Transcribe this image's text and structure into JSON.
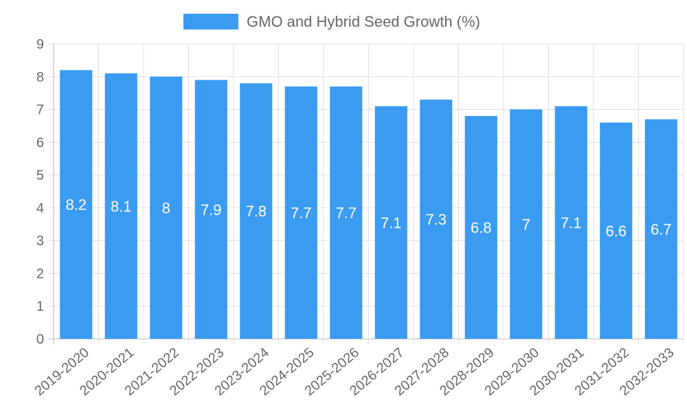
{
  "colors": {
    "bar": "#3b9bf0",
    "grid": "#e0e0e0",
    "axis": "#b5b5b5",
    "text": "#666666",
    "data_label": "#ffffff"
  },
  "chart_data": {
    "type": "bar",
    "categories": [
      "2019-2020",
      "2020-2021",
      "2021-2022",
      "2022-2023",
      "2023-2024",
      "2024-2025",
      "2025-2026",
      "2026-2027",
      "2027-2028",
      "2028-2029",
      "2029-2030",
      "2030-2031",
      "2031-2032",
      "2032-2033"
    ],
    "series": [
      {
        "name": "GMO and Hybrid Seed Growth (%)",
        "values": [
          8.2,
          8.1,
          8,
          7.9,
          7.8,
          7.7,
          7.7,
          7.1,
          7.3,
          6.8,
          7,
          7.1,
          6.6,
          6.7
        ]
      }
    ],
    "title": "",
    "xlabel": "",
    "ylabel": "",
    "ylim": [
      0,
      9
    ],
    "yticks": [
      0,
      1,
      2,
      3,
      4,
      5,
      6,
      7,
      8,
      9
    ],
    "grid": true,
    "legend": "top-center",
    "data_labels": true,
    "x_tick_rotation": "diagonal"
  }
}
